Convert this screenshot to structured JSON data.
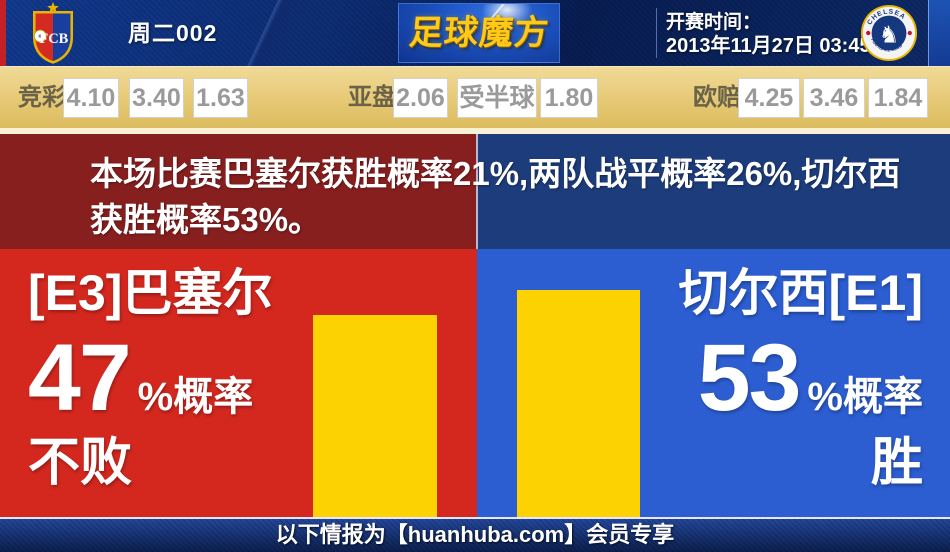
{
  "header": {
    "match_code": "周二002",
    "brand": "足球魔方",
    "kickoff_label": "开赛时间：",
    "kickoff_time": "2013年11月27日 03:45",
    "home_crest_letters": "FCB",
    "away_crest_top": "CHELSEA",
    "away_crest_bottom": "FOOTBALL CLUB"
  },
  "odds_bar": {
    "groups": [
      {
        "label": "竞彩",
        "values": [
          "4.10",
          "3.40",
          "1.63"
        ]
      },
      {
        "label": "亚盘",
        "values": [
          "2.06",
          "受半球",
          "1.80"
        ]
      },
      {
        "label": "欧赔",
        "values": [
          "4.25",
          "3.46",
          "1.84"
        ]
      }
    ]
  },
  "summary": {
    "text": "本场比赛巴塞尔获胜概率21%,两队战平概率26%,切尔西获胜概率53%。",
    "probabilities": {
      "home_win": 21,
      "draw": 26,
      "away_win": 53
    }
  },
  "home_panel": {
    "team": "[E3]巴塞尔",
    "percent": "47",
    "percent_suffix": "%概率",
    "outcome": "不败"
  },
  "away_panel": {
    "team": "切尔西[E1]",
    "percent": "53",
    "percent_suffix": "%概率",
    "outcome": "胜"
  },
  "footer": {
    "text": "以下情报为【huanhuba.com】会员专享"
  },
  "colors": {
    "home_red": "#d4281f",
    "home_dark_red": "#871f1f",
    "away_blue": "#2c5ed2",
    "away_dark_blue": "#1d3c7c",
    "bar_yellow": "#fdd203",
    "odds_bg": "#e6c975",
    "header_navy": "#0d2d74",
    "brand_gold": "#ffc917"
  },
  "chart_data": {
    "type": "bar",
    "categories": [
      "[E3]巴塞尔 不败",
      "切尔西[E1] 胜"
    ],
    "values": [
      47,
      53
    ],
    "title": "",
    "xlabel": "",
    "ylabel": "概率 (%)",
    "ylim": [
      0,
      100
    ],
    "legend": "none",
    "grid": false
  }
}
